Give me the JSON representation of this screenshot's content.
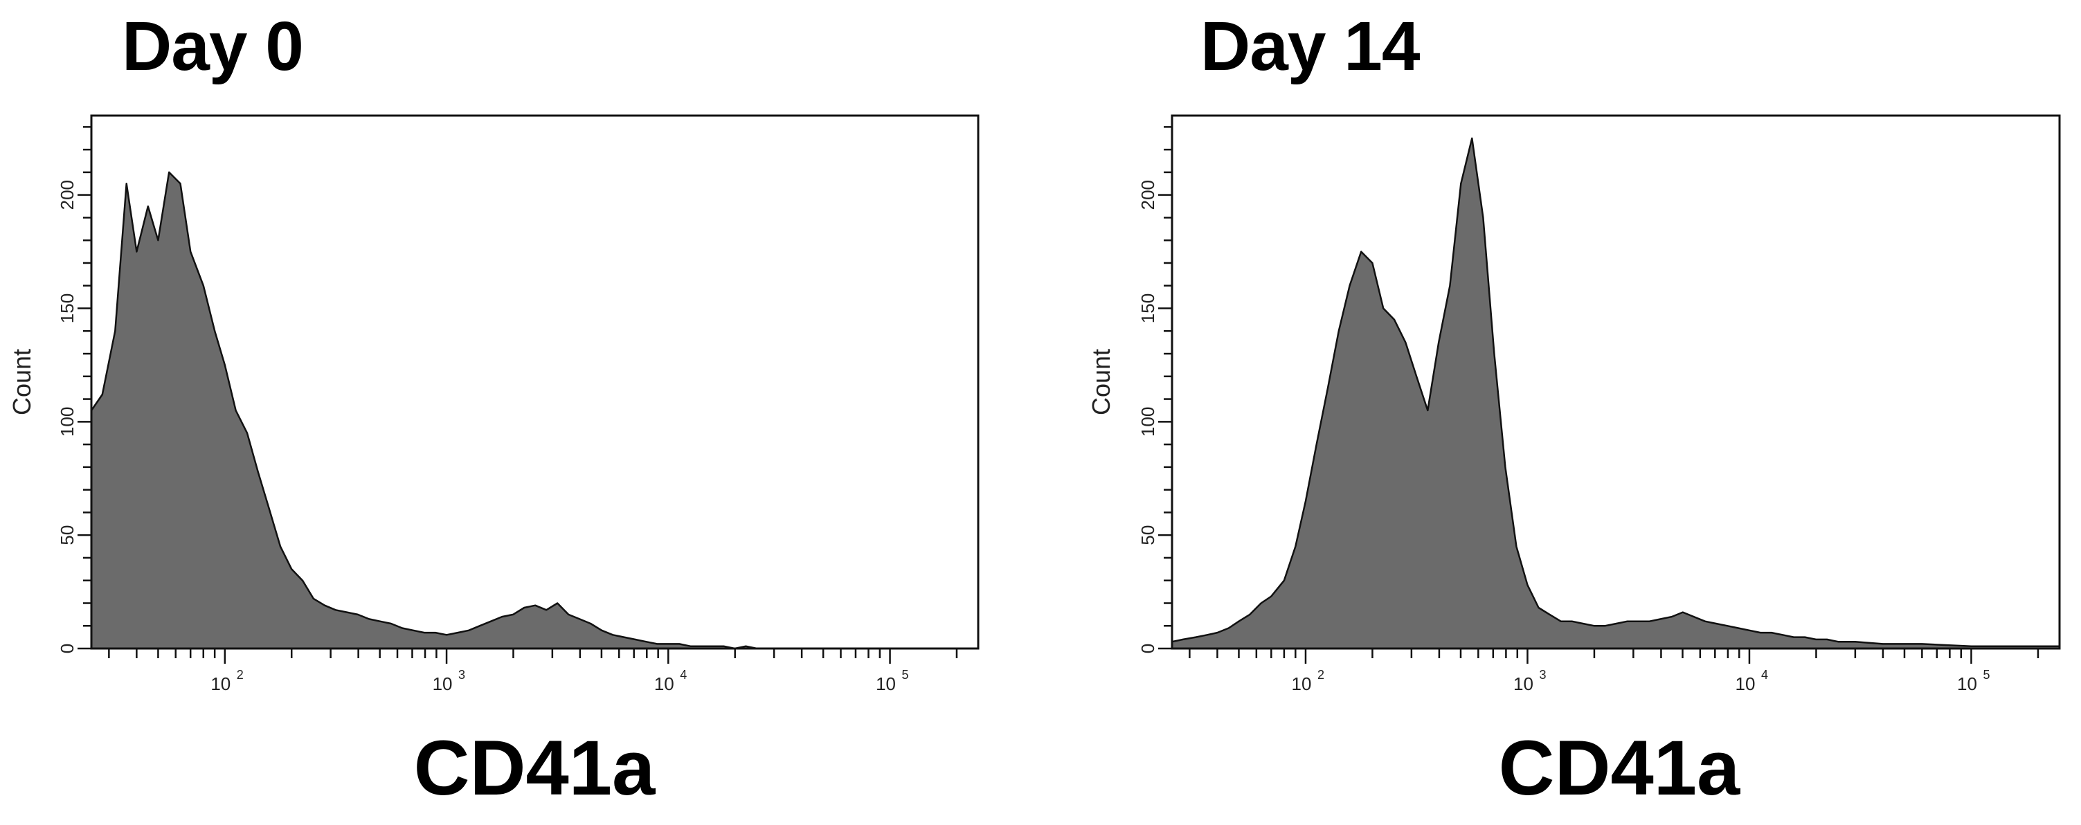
{
  "chart_data": [
    {
      "type": "area",
      "title": "Day 0",
      "xlabel": "CD41a",
      "ylabel": "Count",
      "x_scale": "log",
      "xlim": [
        25,
        250000
      ],
      "ylim": [
        0,
        235
      ],
      "y_ticks": [
        0,
        50,
        100,
        150,
        200
      ],
      "x_major_ticks": [
        100,
        1000,
        10000,
        100000
      ],
      "x_tick_labels": [
        "10",
        "10",
        "10",
        "10"
      ],
      "x_tick_exponents": [
        "2",
        "3",
        "4",
        "5"
      ],
      "grid": false,
      "fill_color": "#6b6b6b",
      "series": [
        {
          "x": [
            25,
            28,
            32,
            36,
            40,
            45,
            50,
            56,
            63,
            70,
            80,
            90,
            100,
            112,
            126,
            141,
            158,
            178,
            200,
            224,
            251,
            282,
            316,
            355,
            398,
            447,
            501,
            562,
            631,
            708,
            794,
            891,
            1000,
            1122,
            1259,
            1413,
            1585,
            1778,
            1995,
            2239,
            2512,
            2818,
            3162,
            3548,
            3981,
            4467,
            5012,
            5623,
            6310,
            7079,
            7943,
            8913,
            10000,
            11220,
            12589,
            14125,
            15849,
            17783,
            19953,
            22387,
            25119,
            30000,
            40000,
            60000,
            100000,
            160000,
            250000
          ],
          "values": [
            105,
            112,
            140,
            205,
            175,
            195,
            180,
            210,
            205,
            175,
            160,
            140,
            125,
            105,
            95,
            78,
            62,
            45,
            35,
            30,
            22,
            19,
            17,
            16,
            15,
            13,
            12,
            11,
            9,
            8,
            7,
            7,
            6,
            7,
            8,
            10,
            12,
            14,
            15,
            18,
            19,
            17,
            20,
            15,
            13,
            11,
            8,
            6,
            5,
            4,
            3,
            2,
            2,
            2,
            1,
            1,
            1,
            1,
            0,
            1,
            0,
            0,
            0,
            0,
            0,
            0,
            0
          ]
        }
      ]
    },
    {
      "type": "area",
      "title": "Day 14",
      "xlabel": "CD41a",
      "ylabel": "Count",
      "x_scale": "log",
      "xlim": [
        25,
        250000
      ],
      "ylim": [
        0,
        235
      ],
      "y_ticks": [
        0,
        50,
        100,
        150,
        200
      ],
      "x_major_ticks": [
        100,
        1000,
        10000,
        100000
      ],
      "x_tick_labels": [
        "10",
        "10",
        "10",
        "10"
      ],
      "x_tick_exponents": [
        "2",
        "3",
        "4",
        "5"
      ],
      "grid": false,
      "fill_color": "#6b6b6b",
      "series": [
        {
          "x": [
            25,
            28,
            32,
            36,
            40,
            45,
            50,
            56,
            63,
            70,
            80,
            90,
            100,
            112,
            126,
            141,
            158,
            178,
            200,
            224,
            251,
            282,
            316,
            355,
            398,
            447,
            501,
            562,
            631,
            708,
            794,
            891,
            1000,
            1122,
            1259,
            1413,
            1585,
            1778,
            1995,
            2239,
            2512,
            2818,
            3162,
            3548,
            3981,
            4467,
            5012,
            5623,
            6310,
            7079,
            7943,
            8913,
            10000,
            11220,
            12589,
            14125,
            15849,
            17783,
            19953,
            22387,
            25119,
            30000,
            40000,
            60000,
            100000,
            160000,
            250000
          ],
          "values": [
            3,
            4,
            5,
            6,
            7,
            9,
            12,
            15,
            20,
            23,
            30,
            45,
            65,
            90,
            115,
            140,
            160,
            175,
            170,
            150,
            145,
            135,
            120,
            105,
            135,
            160,
            205,
            225,
            190,
            130,
            80,
            45,
            28,
            18,
            15,
            12,
            12,
            11,
            10,
            10,
            11,
            12,
            12,
            12,
            13,
            14,
            16,
            14,
            12,
            11,
            10,
            9,
            8,
            7,
            7,
            6,
            5,
            5,
            4,
            4,
            3,
            3,
            2,
            2,
            1,
            1,
            1
          ]
        }
      ]
    }
  ]
}
